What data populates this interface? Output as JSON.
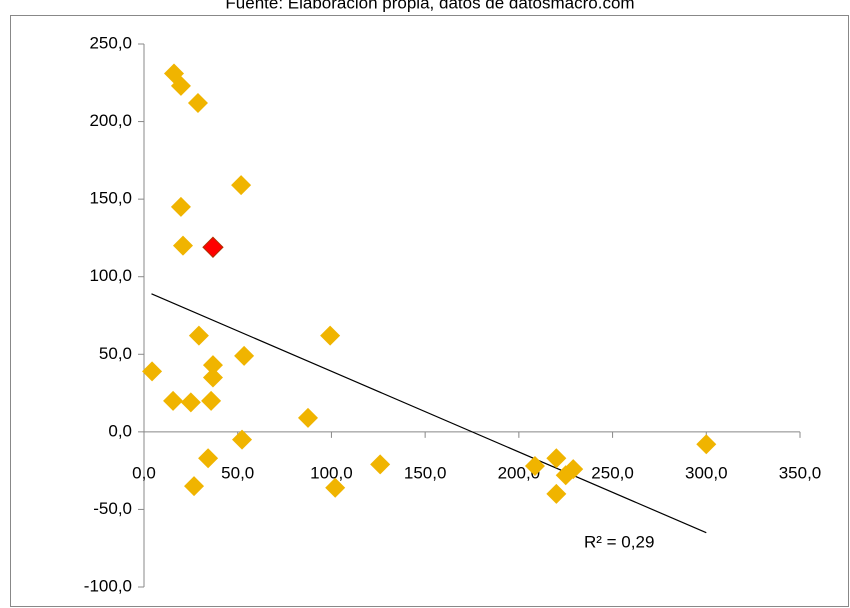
{
  "chart_data": {
    "type": "scatter",
    "title": "Fuente: Elaboración propia, datos de datosmacro.com",
    "series": [
      {
        "color": "#f0b400",
        "x": [
          16,
          19.7,
          28.8,
          51.8,
          19.7,
          20.8,
          29.3,
          4.3,
          53.4,
          36.8,
          36.8,
          15.5,
          25,
          35.8,
          99.3,
          87.5,
          52.3,
          34.2,
          26.7,
          102,
          126,
          208.6,
          220,
          225,
          229,
          220,
          300
        ],
        "values": [
          231,
          223,
          212,
          159,
          145,
          120,
          62,
          39,
          49,
          43,
          35,
          20,
          19,
          20,
          62,
          9,
          -5,
          -17,
          -35,
          -36,
          -21,
          -22,
          -17,
          -28,
          -24,
          -40,
          -8
        ]
      },
      {
        "color": "#ff0000",
        "x": [
          36.8
        ],
        "values": [
          119
        ]
      }
    ],
    "trendline": {
      "x": [
        4,
        300
      ],
      "y": [
        89,
        -65
      ],
      "label": "R² = 0,29"
    },
    "xlim": [
      0,
      350
    ],
    "xticks": [
      {
        "value": 0,
        "label": "0,0"
      },
      {
        "value": 50,
        "label": "50,0"
      },
      {
        "value": 100,
        "label": "100,0"
      },
      {
        "value": 150,
        "label": "150,0"
      },
      {
        "value": 200,
        "label": "200,0"
      },
      {
        "value": 250,
        "label": "250,0"
      },
      {
        "value": 300,
        "label": "300,0"
      },
      {
        "value": 350,
        "label": "350,0"
      }
    ],
    "ylim": [
      -100,
      250
    ],
    "yticks": [
      {
        "value": -100,
        "label": "-100,0"
      },
      {
        "value": -50,
        "label": "-50,0"
      },
      {
        "value": 0,
        "label": "0,0"
      },
      {
        "value": 50,
        "label": "50,0"
      },
      {
        "value": 100,
        "label": "100,0"
      },
      {
        "value": 150,
        "label": "150,0"
      },
      {
        "value": 200,
        "label": "200,0"
      },
      {
        "value": 250,
        "label": "250,0"
      }
    ]
  }
}
